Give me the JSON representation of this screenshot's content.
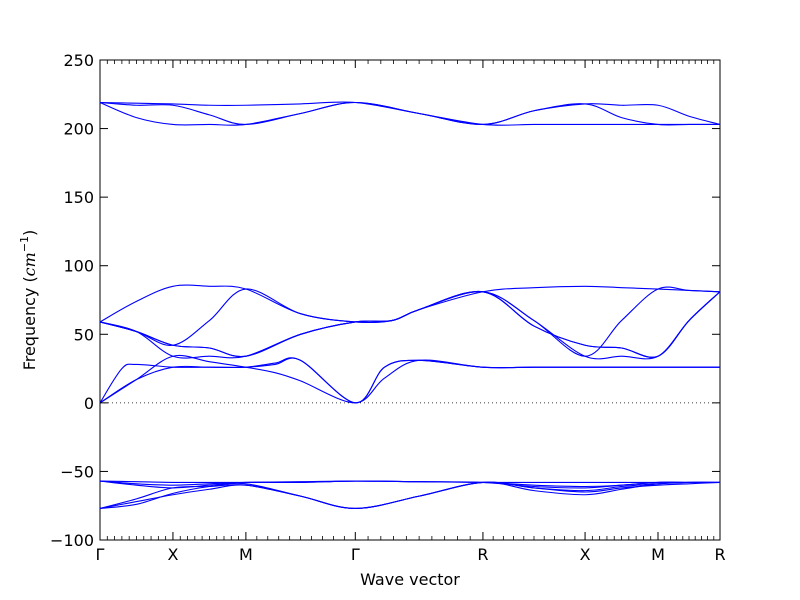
{
  "chart_data": {
    "type": "line",
    "title": "",
    "xlabel": "Wave vector",
    "ylabel": "Frequency (cm⁻¹)",
    "ylabel_parts": {
      "main": "Frequency (",
      "var": "cm",
      "sup": "−1",
      "close": ")"
    },
    "ylim": [
      -100,
      250
    ],
    "yticks": [
      -100,
      -50,
      0,
      50,
      100,
      150,
      200,
      250
    ],
    "ytick_labels": [
      "−100",
      "−50",
      "0",
      "50",
      "100",
      "150",
      "200",
      "250"
    ],
    "xlim": [
      0,
      8.5
    ],
    "high_symmetry_points": [
      {
        "label": "Γ",
        "x": 0
      },
      {
        "label": "X",
        "x": 1
      },
      {
        "label": "M",
        "x": 2
      },
      {
        "label": "Γ",
        "x": 3.5
      },
      {
        "label": "R",
        "x": 5.25
      },
      {
        "label": "X",
        "x": 6.65
      },
      {
        "label": "M",
        "x": 7.65
      },
      {
        "label": "R",
        "x": 8.5
      }
    ],
    "zero_line": {
      "y": 0,
      "style": "dotted"
    },
    "line_color": "#0000ff",
    "series": [
      {
        "x": [
          0,
          0.5,
          1,
          1.5,
          2,
          2.75,
          3.5,
          4.375,
          5.25,
          5.95,
          6.65,
          7.15,
          7.65,
          8.075,
          8.5
        ],
        "y": [
          219,
          218.5,
          218,
          217,
          217,
          218,
          219,
          211,
          203,
          213,
          218,
          217,
          217,
          209,
          203
        ]
      },
      {
        "x": [
          0,
          0.5,
          1,
          1.5,
          2,
          2.75,
          3.5,
          4.375,
          5.25,
          5.95,
          6.65,
          7.15,
          7.65,
          8.075,
          8.5
        ],
        "y": [
          219,
          208,
          203,
          203,
          203,
          211,
          219,
          211,
          203,
          203,
          203,
          203,
          203,
          203,
          203
        ]
      },
      {
        "x": [
          0,
          0.5,
          1,
          1.5,
          2,
          2.75,
          3.5,
          4.375,
          5.25,
          5.95,
          6.65,
          7.15,
          7.65,
          8.075,
          8.5
        ],
        "y": [
          219,
          217,
          217,
          210,
          203,
          211,
          219,
          211,
          203,
          213,
          218,
          208,
          203,
          203,
          203
        ]
      },
      {
        "x": [
          0,
          0.5,
          1,
          1.5,
          2,
          2.75,
          3.5,
          4,
          4.375,
          5.25,
          5.95,
          6.65,
          7.15,
          7.65,
          8.075,
          8.5
        ],
        "y": [
          59,
          74,
          85,
          85,
          83,
          65,
          59,
          60,
          68,
          81,
          84,
          85,
          84,
          83,
          82,
          81
        ]
      },
      {
        "x": [
          0,
          0.5,
          1,
          1.5,
          2,
          2.75,
          3.5,
          4,
          4.375,
          5.25,
          5.95,
          6.65,
          7.15,
          7.65,
          8.075,
          8.5
        ],
        "y": [
          59,
          52,
          42,
          40,
          34,
          50,
          59,
          60,
          68,
          81,
          60,
          34,
          34,
          34,
          60,
          81
        ]
      },
      {
        "x": [
          0,
          0.5,
          1,
          1.5,
          2,
          2.75,
          3.5,
          4,
          4.375,
          5.25,
          5.95,
          6.65,
          7.15,
          7.65,
          8.075,
          8.5
        ],
        "y": [
          59,
          52,
          42,
          60,
          83,
          65,
          59,
          60,
          68,
          81,
          60,
          34,
          60,
          83,
          82,
          81
        ]
      },
      {
        "x": [
          0,
          0.5,
          1,
          1.5,
          2,
          2.75,
          3.5,
          4,
          4.375,
          5.25,
          5.95,
          6.65,
          7.15,
          7.65,
          8.075,
          8.5
        ],
        "y": [
          59,
          52,
          34,
          34,
          34,
          50,
          59,
          60,
          68,
          81,
          56,
          42,
          40,
          34,
          60,
          81
        ]
      },
      {
        "x": [
          0,
          0.5,
          1,
          1.5,
          2,
          2.75,
          3.5,
          4,
          4.375,
          5.25,
          5.95,
          6.65,
          7.15,
          7.65,
          8.075,
          8.5
        ],
        "y": [
          59,
          52,
          42,
          40,
          34,
          50,
          59,
          60,
          68,
          81,
          56,
          42,
          40,
          34,
          60,
          81
        ]
      },
      {
        "x": [
          0,
          0.3,
          0.5,
          1,
          1.5,
          2,
          2.4,
          2.75,
          3.5,
          3.9,
          4.375,
          5.25,
          5.95,
          6.65,
          7.15,
          7.65,
          8.075,
          8.5
        ],
        "y": [
          0,
          25,
          28,
          26,
          26,
          26,
          29,
          31,
          0,
          26,
          31,
          26,
          26,
          26,
          26,
          26,
          26,
          26
        ]
      },
      {
        "x": [
          0,
          0.5,
          1,
          1.5,
          2,
          2.4,
          2.75,
          3.5,
          3.9,
          4.375,
          5.25,
          5.95,
          6.65,
          7.15,
          7.65,
          8.075,
          8.5
        ],
        "y": [
          0,
          17,
          34,
          30,
          26,
          22,
          16,
          0,
          18,
          31,
          26,
          26,
          26,
          26,
          26,
          26,
          26
        ]
      },
      {
        "x": [
          0,
          0.5,
          1,
          1.5,
          2,
          2.4,
          2.75,
          3.5,
          3.9,
          4.375,
          5.25,
          5.95,
          6.65,
          7.15,
          7.65,
          8.075,
          8.5
        ],
        "y": [
          0,
          17,
          26,
          26,
          26,
          28,
          31,
          0,
          26,
          31,
          26,
          26,
          26,
          26,
          26,
          26,
          26
        ]
      },
      {
        "x": [
          0,
          0.5,
          1,
          1.5,
          2,
          2.75,
          3.5,
          4.375,
          5.25,
          5.95,
          6.65,
          7.15,
          7.65,
          8.075,
          8.5
        ],
        "y": [
          -57,
          -57.5,
          -58,
          -58,
          -58,
          -57.5,
          -57,
          -57.5,
          -58,
          -58,
          -58,
          -58,
          -58,
          -58,
          -58
        ]
      },
      {
        "x": [
          0,
          0.5,
          1,
          1.5,
          2,
          2.75,
          3.5,
          4.375,
          5.25,
          5.95,
          6.65,
          7.15,
          7.65,
          8.075,
          8.5
        ],
        "y": [
          -57,
          -59,
          -60,
          -59,
          -58,
          -58,
          -57,
          -57.5,
          -58,
          -60,
          -61,
          -60,
          -58,
          -58,
          -58
        ]
      },
      {
        "x": [
          0,
          0.5,
          1,
          1.5,
          2,
          2.75,
          3.5,
          4.375,
          5.25,
          5.95,
          6.65,
          7.15,
          7.65,
          8.075,
          8.5
        ],
        "y": [
          -57,
          -60,
          -62,
          -60,
          -58,
          -58,
          -57,
          -57.5,
          -58,
          -61,
          -62,
          -60,
          -58,
          -58,
          -58
        ]
      },
      {
        "x": [
          0,
          0.5,
          1,
          1.5,
          2,
          2.75,
          3.5,
          4.375,
          5.25,
          5.95,
          6.65,
          7.15,
          7.65,
          8.075,
          8.5
        ],
        "y": [
          -77,
          -70,
          -62,
          -61,
          -60,
          -68,
          -77,
          -68,
          -58,
          -62,
          -64,
          -61,
          -59,
          -58,
          -58
        ]
      },
      {
        "x": [
          0,
          0.5,
          1,
          1.5,
          2,
          2.75,
          3.5,
          4.375,
          5.25,
          5.95,
          6.65,
          7.15,
          7.65,
          8.075,
          8.5
        ],
        "y": [
          -77,
          -72,
          -67,
          -63,
          -60,
          -68,
          -77,
          -68,
          -58,
          -64,
          -67,
          -63,
          -59,
          -58,
          -58
        ]
      },
      {
        "x": [
          0,
          0.5,
          1,
          1.5,
          2,
          2.75,
          3.5,
          4.375,
          5.25,
          5.95,
          6.65,
          7.15,
          7.65,
          8.075,
          8.5
        ],
        "y": [
          -77,
          -74,
          -66,
          -61,
          -59,
          -68,
          -77,
          -68,
          -58,
          -62,
          -65,
          -62,
          -60,
          -59,
          -58
        ]
      }
    ]
  }
}
